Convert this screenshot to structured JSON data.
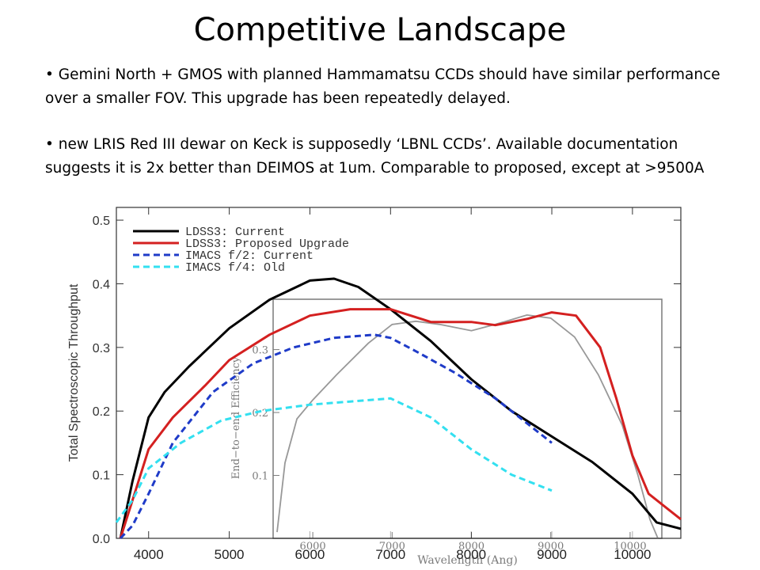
{
  "slide": {
    "title": "Competitive Landscape",
    "bullets": [
      "• Gemini North + GMOS with planned Hammamatsu CCDs should have similar performance over a smaller FOV. This upgrade has been repeatedly delayed.",
      "• new LRIS Red III dewar on Keck is supposedly ‘LBNL CCDs’. Available documentation suggests it is 2x better than DEIMOS at 1um. Comparable to proposed, except at >9500A"
    ]
  },
  "chart_data": [
    {
      "type": "line",
      "title": "",
      "xlabel": "",
      "ylabel": "Total Spectroscopic Throughput",
      "xlim": [
        3600,
        10600
      ],
      "ylim": [
        0,
        0.52
      ],
      "xticks": [
        4000,
        5000,
        6000,
        7000,
        8000,
        9000,
        10000
      ],
      "yticks": [
        0.0,
        0.1,
        0.2,
        0.3,
        0.4,
        0.5
      ],
      "ytick_labels": [
        "0.0",
        "0.1",
        "0.2",
        "0.3",
        "0.4",
        "0.5"
      ],
      "legend_position": "top-left",
      "series": [
        {
          "name": "LDSS3: Current",
          "color": "#000000",
          "dash": "",
          "x": [
            3650,
            3800,
            4000,
            4200,
            4500,
            5000,
            5500,
            6000,
            6300,
            6600,
            7000,
            7500,
            8000,
            8500,
            9000,
            9500,
            10000,
            10300,
            10600
          ],
          "y": [
            0.0,
            0.09,
            0.19,
            0.23,
            0.27,
            0.33,
            0.375,
            0.405,
            0.408,
            0.395,
            0.36,
            0.31,
            0.25,
            0.2,
            0.16,
            0.12,
            0.07,
            0.025,
            0.015
          ]
        },
        {
          "name": "LDSS3: Proposed Upgrade",
          "color": "#d42020",
          "dash": "",
          "x": [
            3650,
            3800,
            4000,
            4300,
            4700,
            5000,
            5500,
            6000,
            6500,
            7000,
            7500,
            8000,
            8300,
            8700,
            9000,
            9300,
            9600,
            9800,
            10000,
            10200,
            10400,
            10600
          ],
          "y": [
            0.0,
            0.06,
            0.14,
            0.19,
            0.24,
            0.28,
            0.32,
            0.35,
            0.36,
            0.36,
            0.34,
            0.34,
            0.335,
            0.345,
            0.355,
            0.35,
            0.3,
            0.22,
            0.13,
            0.07,
            0.05,
            0.03
          ]
        },
        {
          "name": "IMACS f/2: Current",
          "color": "#1f3bc8",
          "dash": "8,5",
          "x": [
            3650,
            3800,
            4000,
            4300,
            4800,
            5300,
            5800,
            6300,
            6800,
            7000,
            7300,
            7800,
            8300,
            9000
          ],
          "y": [
            0.0,
            0.02,
            0.07,
            0.15,
            0.23,
            0.275,
            0.3,
            0.315,
            0.32,
            0.315,
            0.295,
            0.26,
            0.22,
            0.15
          ]
        },
        {
          "name": "IMACS f/4: Old",
          "color": "#33e0f0",
          "dash": "8,5",
          "x": [
            3600,
            3800,
            4000,
            4400,
            4900,
            5400,
            6000,
            6500,
            7000,
            7500,
            8000,
            8500,
            9000
          ],
          "y": [
            0.025,
            0.06,
            0.11,
            0.15,
            0.185,
            0.2,
            0.21,
            0.215,
            0.22,
            0.19,
            0.14,
            0.1,
            0.075
          ]
        }
      ]
    },
    {
      "type": "line",
      "title": "",
      "xlabel": "Wavelength (Ang)",
      "ylabel": "End−to−end Efficiency",
      "xlim": [
        5500,
        10400
      ],
      "ylim": [
        0,
        0.38
      ],
      "xticks": [
        6000,
        7000,
        8000,
        9000,
        10000
      ],
      "yticks": [
        0.1,
        0.2,
        0.3
      ],
      "ytick_labels": [
        "0.1",
        "0.2",
        "0.3"
      ],
      "series": [
        {
          "color": "#555555",
          "x": [
            5550,
            5650,
            5800,
            6000,
            6300,
            6700,
            7000,
            7300,
            7600,
            8000,
            8300,
            8700,
            9000,
            9300,
            9600,
            9900,
            10100,
            10250,
            10350
          ],
          "y": [
            0.01,
            0.12,
            0.19,
            0.22,
            0.26,
            0.31,
            0.34,
            0.345,
            0.34,
            0.33,
            0.34,
            0.355,
            0.35,
            0.32,
            0.26,
            0.18,
            0.1,
            0.03,
            0.0
          ]
        }
      ]
    }
  ]
}
